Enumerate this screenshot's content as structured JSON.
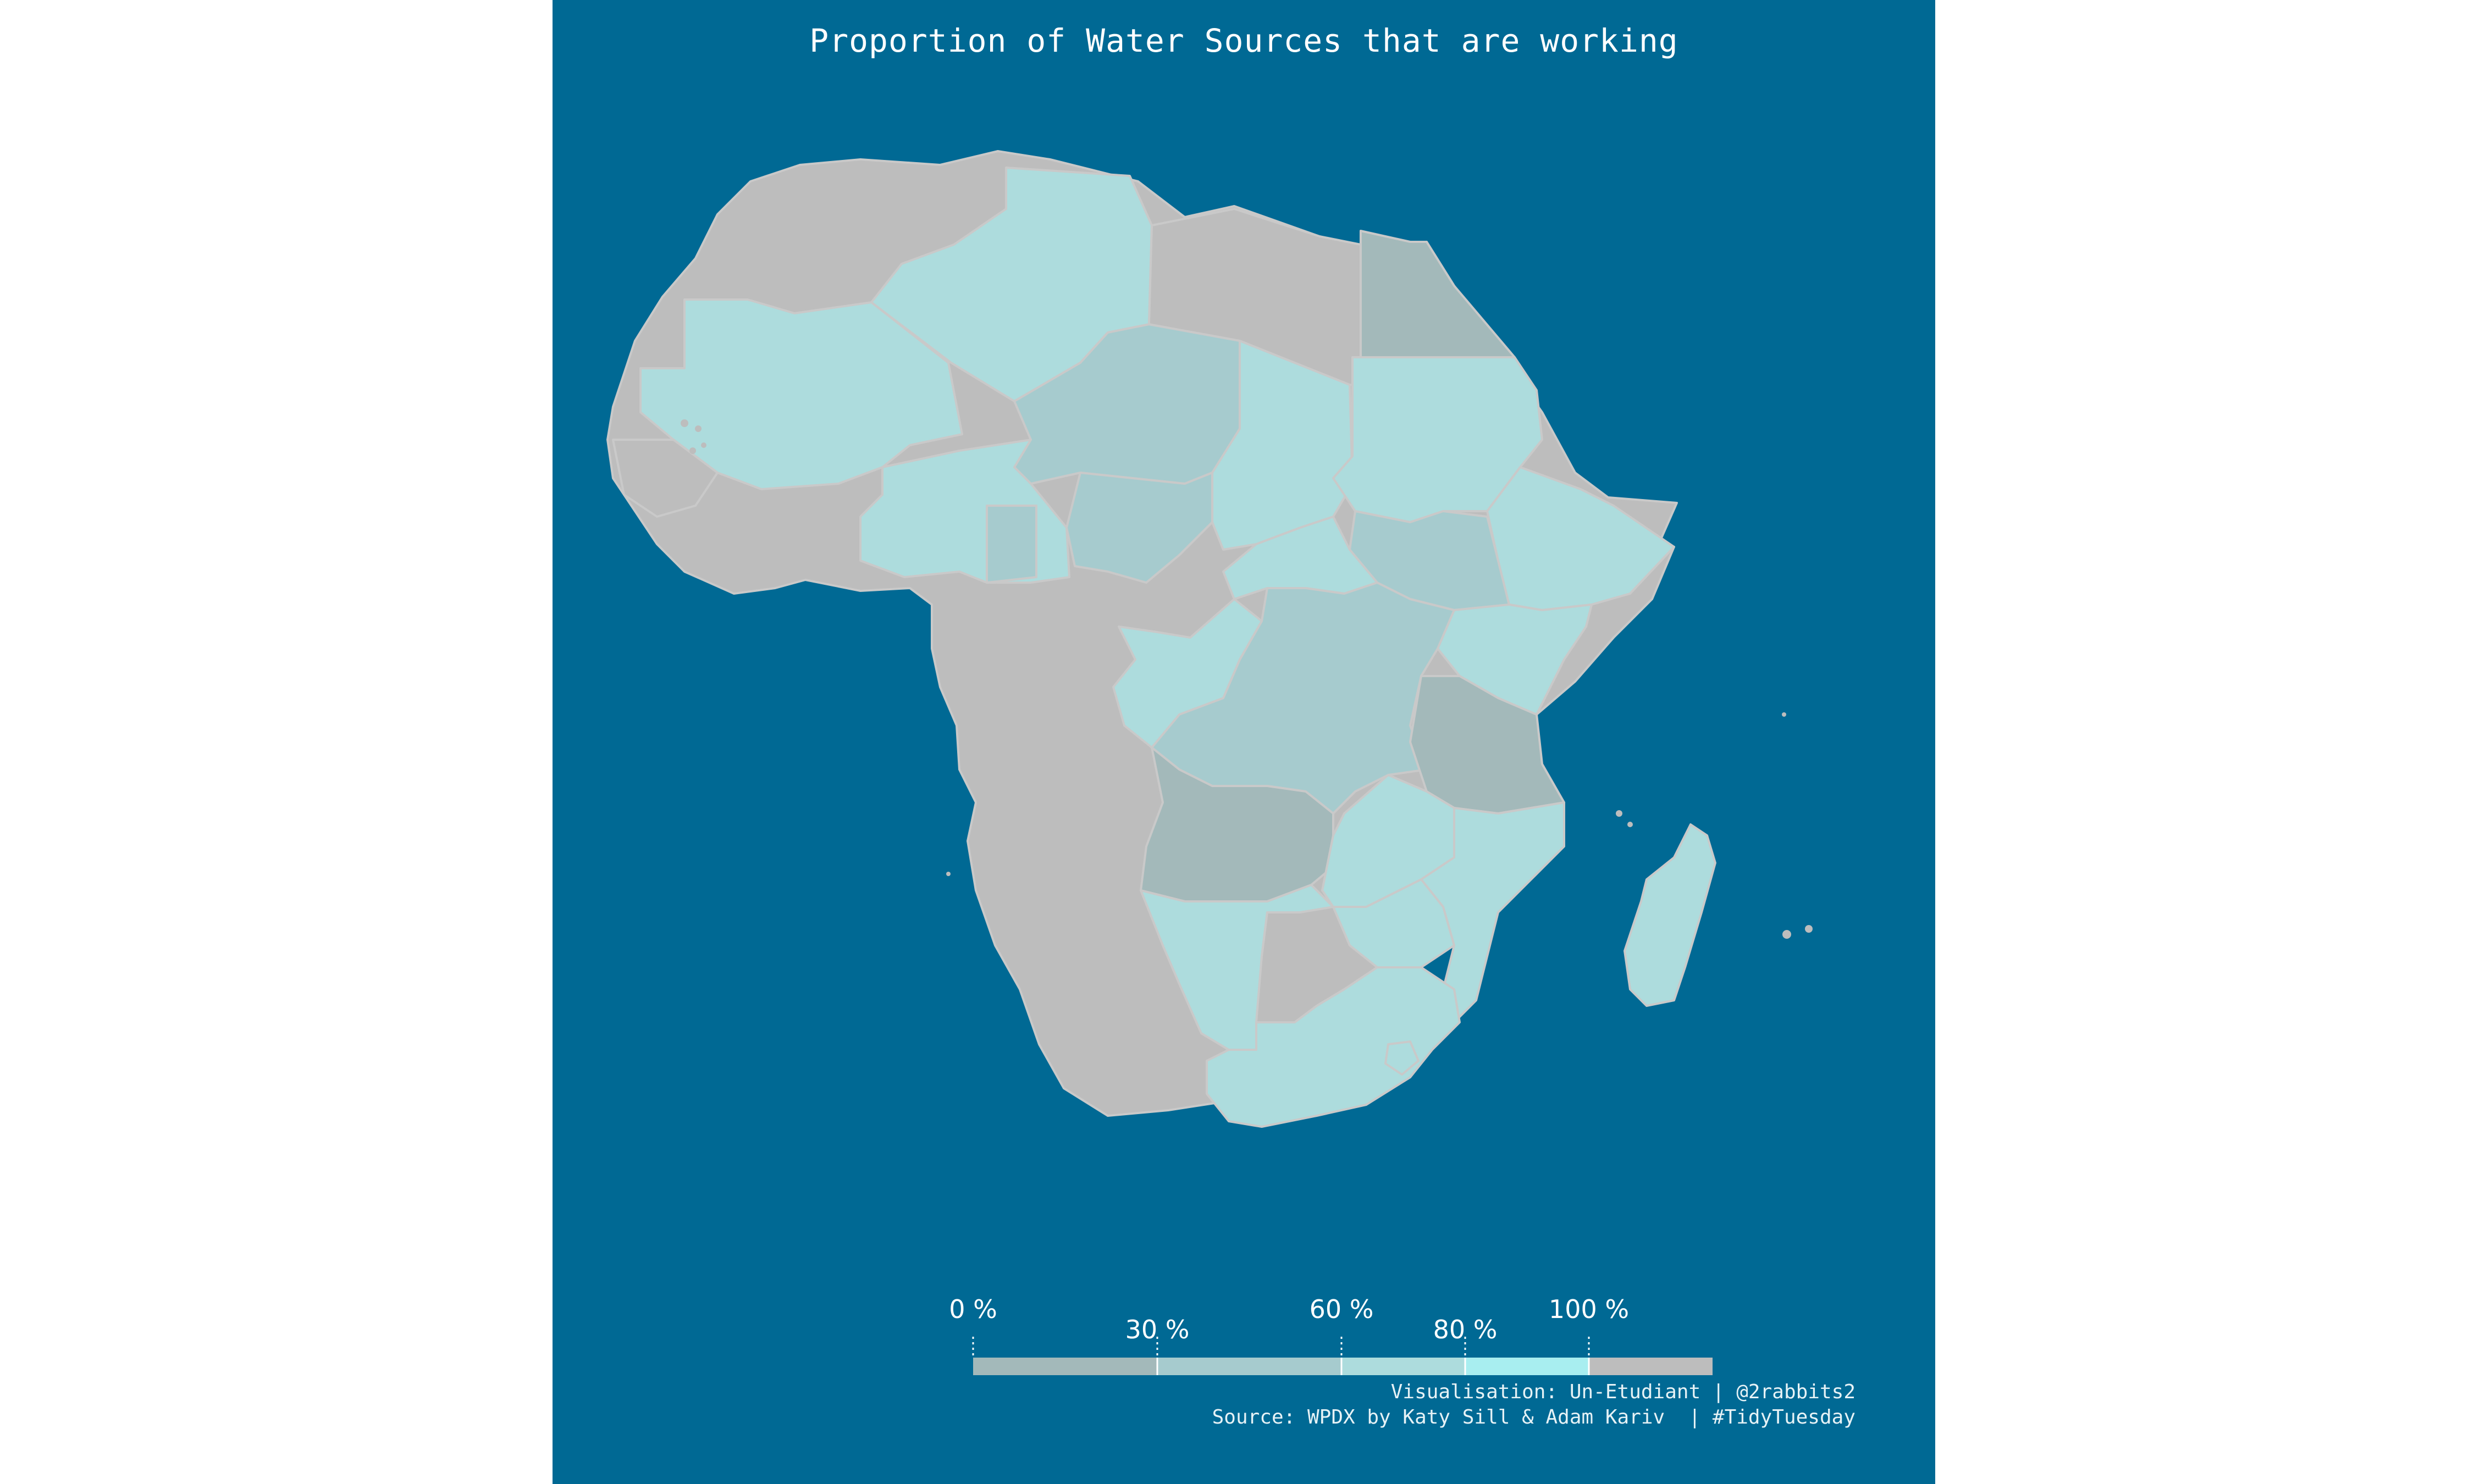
{
  "title": "Proportion of Water Sources that are working",
  "legend": {
    "ticks": [
      {
        "value": 0,
        "label": "0 %"
      },
      {
        "value": 30,
        "label": "30 %"
      },
      {
        "value": 60,
        "label": "60 %"
      },
      {
        "value": 80,
        "label": "80 %"
      },
      {
        "value": 100,
        "label": "100 %"
      }
    ],
    "bins": [
      {
        "from": 0,
        "to": 30,
        "color": "#a3b9ba"
      },
      {
        "from": 30,
        "to": 60,
        "color": "#a6cbce"
      },
      {
        "from": 60,
        "to": 80,
        "color": "#addcdd"
      },
      {
        "from": 80,
        "to": 100,
        "color": "#a8eef0"
      },
      {
        "from": "NA",
        "to": "NA",
        "color": "#bdbdbd"
      }
    ]
  },
  "colors": {
    "ocean": "#006994",
    "no_data": "#bdbdbd",
    "border": "#c9c9c9"
  },
  "caption": {
    "line1": "Visualisation: Un-Etudiant | @2rabbits2",
    "line2": "Source: WPDX by Katy Sill & Adam Kariv  | #TidyTuesday"
  }
}
